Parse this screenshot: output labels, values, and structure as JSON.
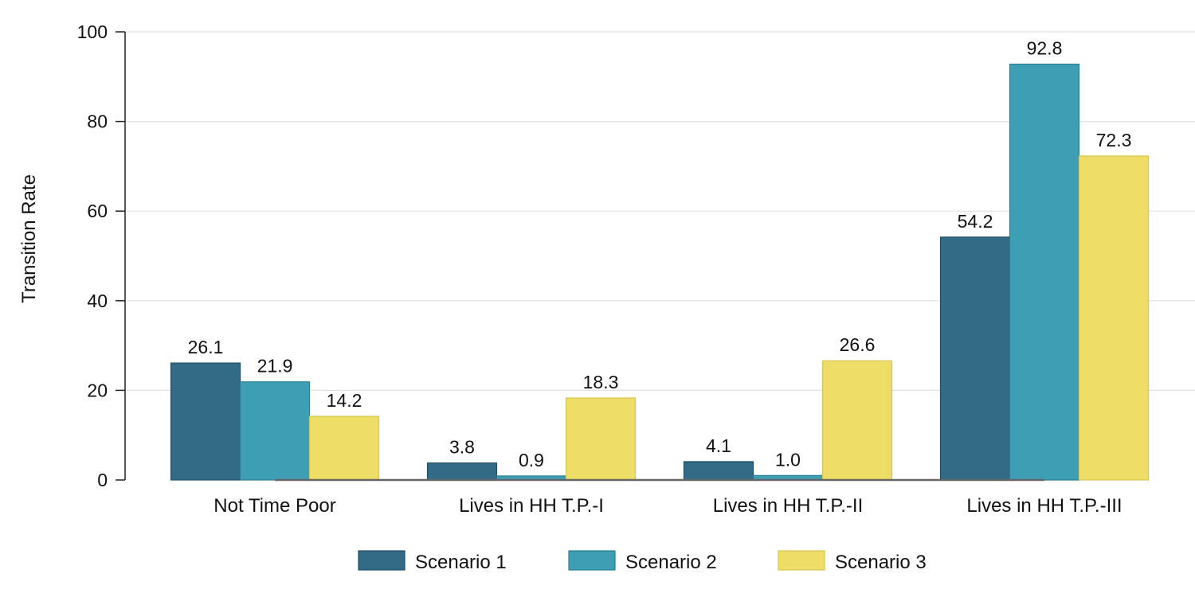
{
  "chart_data": {
    "type": "bar",
    "title": "",
    "xlabel": "",
    "ylabel": "Transition Rate",
    "ylim": [
      0,
      100
    ],
    "yticks": [
      0,
      20,
      40,
      60,
      80,
      100
    ],
    "grid": true,
    "legend_position": "bottom",
    "categories": [
      "Not Time Poor",
      "Lives in HH T.P.-I",
      "Lives in HH T.P.-II",
      "Lives in HH T.P.-III"
    ],
    "series": [
      {
        "name": "Scenario 1",
        "values": [
          26.1,
          3.8,
          4.1,
          54.2
        ],
        "color": "#336b87"
      },
      {
        "name": "Scenario 2",
        "values": [
          21.9,
          0.9,
          1.0,
          92.8
        ],
        "color": "#3e9fb4"
      },
      {
        "name": "Scenario 3",
        "values": [
          14.2,
          18.3,
          26.6,
          72.3
        ],
        "color": "#eedd66"
      }
    ]
  }
}
